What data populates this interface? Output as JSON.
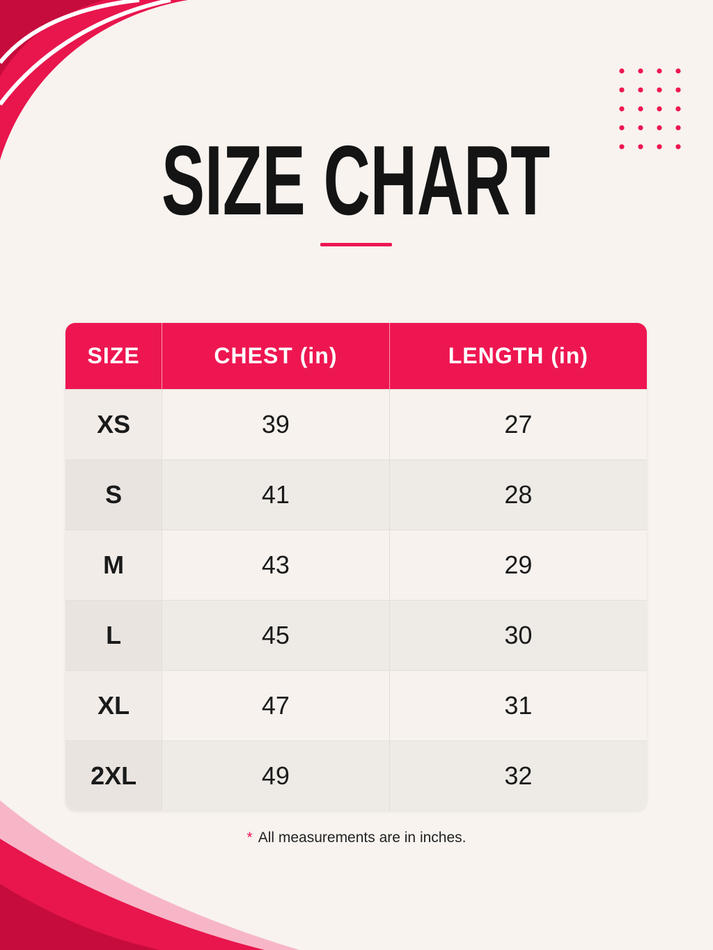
{
  "header": {
    "title": "SIZE CHART"
  },
  "table": {
    "columns": [
      "SIZE",
      "CHEST (in)",
      "LENGTH (in)"
    ],
    "rows": [
      [
        "XS",
        39,
        27
      ],
      [
        "S",
        41,
        28
      ],
      [
        "M",
        43,
        29
      ],
      [
        "L",
        45,
        30
      ],
      [
        "XL",
        47,
        31
      ],
      [
        "2XL",
        49,
        32
      ]
    ]
  },
  "footnote": {
    "marker": "*",
    "text": "All measurements are in inches."
  }
}
